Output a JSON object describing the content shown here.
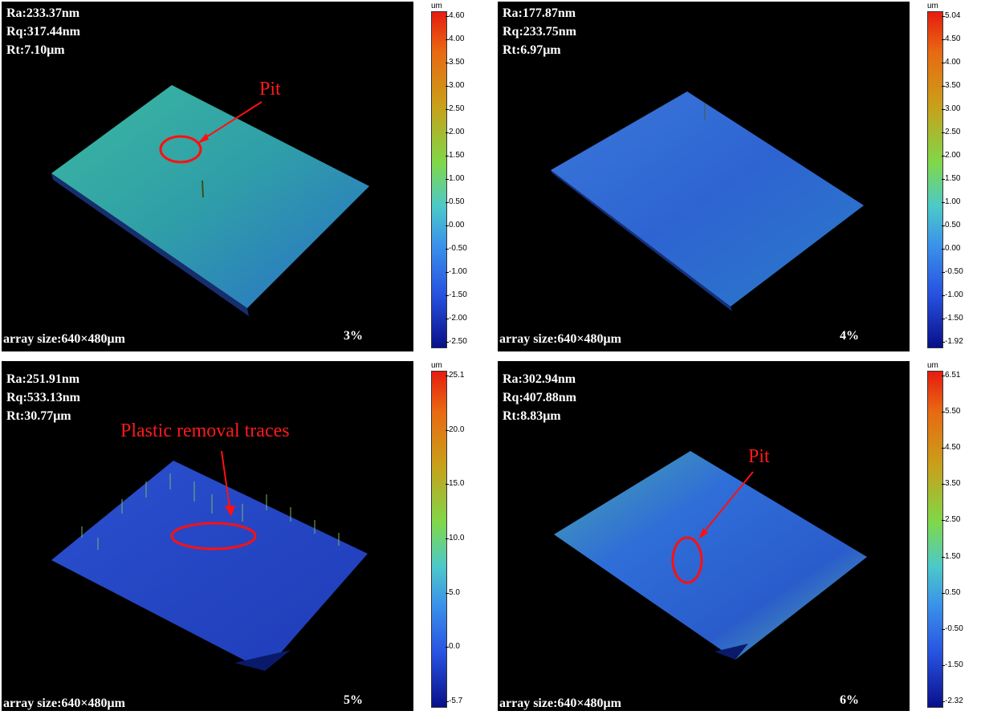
{
  "panels": [
    {
      "stats": [
        "Ra:233.37nm",
        "Rq:317.44nm",
        "Rt:7.10μm"
      ],
      "array_size": "array size:640×480μm",
      "percent": "3%",
      "annotation": "Pit",
      "unit": "um",
      "ticks": [
        "4.60",
        "4.00",
        "3.50",
        "3.00",
        "2.50",
        "2.00",
        "1.50",
        "1.00",
        "0.50",
        "0.00",
        "-0.50",
        "-1.00",
        "-1.50",
        "-2.00",
        "-2.50"
      ],
      "surface_color": "#2f9e9a"
    },
    {
      "stats": [
        "Ra:177.87nm",
        "Rq:233.75nm",
        "Rt:6.97μm"
      ],
      "array_size": "array size:640×480μm",
      "percent": "4%",
      "annotation": "",
      "unit": "um",
      "ticks": [
        "5.04",
        "4.50",
        "4.00",
        "3.50",
        "3.00",
        "2.50",
        "2.00",
        "1.50",
        "1.00",
        "0.50",
        "0.00",
        "-0.50",
        "-1.00",
        "-1.50",
        "-1.92"
      ],
      "surface_color": "#2a66d6"
    },
    {
      "stats": [
        "Ra:251.91nm",
        "Rq:533.13nm",
        "Rt:30.77μm"
      ],
      "array_size": "array size:640×480μm",
      "percent": "5%",
      "annotation": "Plastic removal traces",
      "unit": "um",
      "ticks": [
        "25.1",
        "20.0",
        "15.0",
        "10.0",
        "5.0",
        "0.0",
        "-5.7"
      ],
      "surface_color": "#2346c8"
    },
    {
      "stats": [
        "Ra:302.94nm",
        "Rq:407.88nm",
        "Rt:8.83μm"
      ],
      "array_size": "array size:640×480μm",
      "percent": "6%",
      "annotation": "Pit",
      "unit": "um",
      "ticks": [
        "6.51",
        "5.50",
        "4.50",
        "3.50",
        "2.50",
        "1.50",
        "0.50",
        "-0.50",
        "-1.50",
        "-2.32"
      ],
      "surface_color": "#2d6ed8"
    }
  ]
}
